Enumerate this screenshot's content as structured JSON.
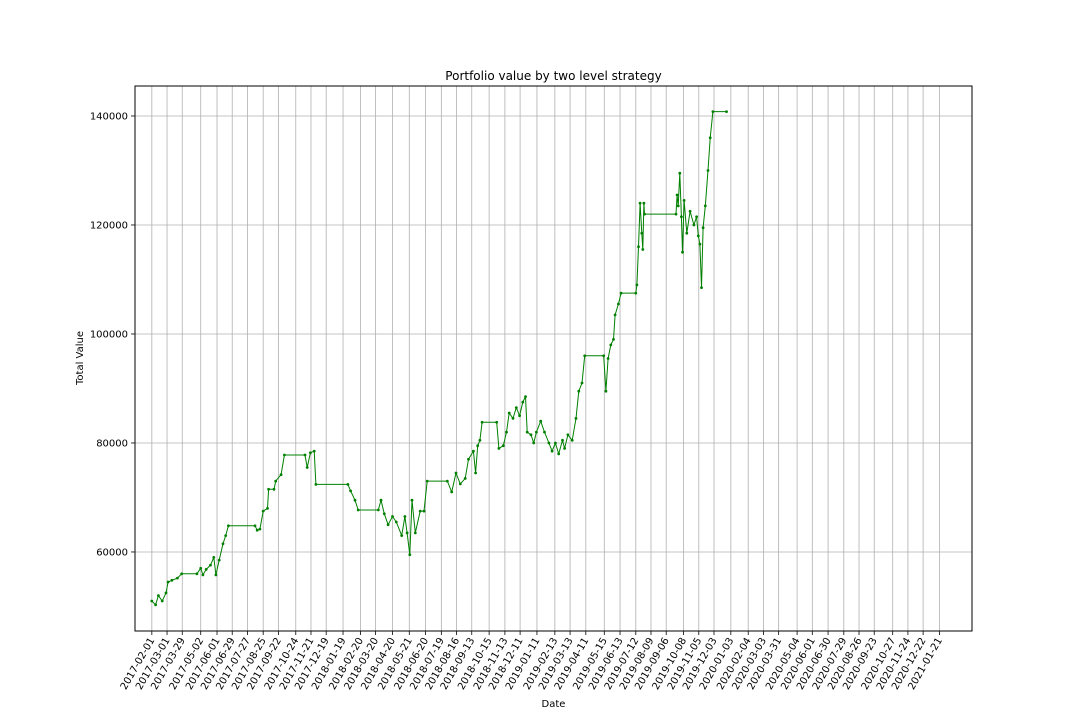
{
  "chart_data": {
    "type": "line",
    "title": "Portfolio value by two level strategy",
    "xlabel": "Date",
    "ylabel": "Total Value",
    "grid": true,
    "legend": "none",
    "xlim": [
      "2017-01-01",
      "2021-03-22"
    ],
    "ylim": [
      45500,
      145500
    ],
    "y_ticks": [
      60000,
      80000,
      100000,
      120000,
      140000
    ],
    "x_ticks": [
      "2017-02-01",
      "2017-03-01",
      "2017-03-29",
      "2017-05-02",
      "2017-06-01",
      "2017-06-29",
      "2017-07-27",
      "2017-08-25",
      "2017-09-22",
      "2017-10-24",
      "2017-11-21",
      "2017-12-19",
      "2018-01-19",
      "2018-02-20",
      "2018-03-20",
      "2018-04-20",
      "2018-05-21",
      "2018-06-20",
      "2018-07-19",
      "2018-08-16",
      "2018-09-13",
      "2018-10-15",
      "2018-11-13",
      "2018-12-11",
      "2019-01-11",
      "2019-02-13",
      "2019-03-13",
      "2019-04-11",
      "2019-05-15",
      "2019-06-13",
      "2019-07-12",
      "2019-08-09",
      "2019-09-06",
      "2019-10-08",
      "2019-11-05",
      "2019-12-03",
      "2020-01-03",
      "2020-02-04",
      "2020-03-03",
      "2020-03-31",
      "2020-05-04",
      "2020-06-01",
      "2020-06-30",
      "2020-07-29",
      "2020-08-26",
      "2020-09-23",
      "2020-10-27",
      "2020-11-24",
      "2020-12-22",
      "2021-01-21"
    ],
    "series": [
      {
        "color": "#008000",
        "points": [
          [
            "2017-02-01",
            51000
          ],
          [
            "2017-02-08",
            50300
          ],
          [
            "2017-02-13",
            52000
          ],
          [
            "2017-02-20",
            51000
          ],
          [
            "2017-02-27",
            52500
          ],
          [
            "2017-03-03",
            54500
          ],
          [
            "2017-03-10",
            54800
          ],
          [
            "2017-03-20",
            55200
          ],
          [
            "2017-03-28",
            56000
          ],
          [
            "2017-04-25",
            56000
          ],
          [
            "2017-05-02",
            57000
          ],
          [
            "2017-05-06",
            55800
          ],
          [
            "2017-05-12",
            56800
          ],
          [
            "2017-05-20",
            57600
          ],
          [
            "2017-05-26",
            59000
          ],
          [
            "2017-05-30",
            55800
          ],
          [
            "2017-06-05",
            58500
          ],
          [
            "2017-06-12",
            61500
          ],
          [
            "2017-06-17",
            63000
          ],
          [
            "2017-06-22",
            64800
          ],
          [
            "2017-08-10",
            64800
          ],
          [
            "2017-08-14",
            64000
          ],
          [
            "2017-08-19",
            64200
          ],
          [
            "2017-08-25",
            67500
          ],
          [
            "2017-09-02",
            68000
          ],
          [
            "2017-09-04",
            71500
          ],
          [
            "2017-09-14",
            71500
          ],
          [
            "2017-09-17",
            73000
          ],
          [
            "2017-09-27",
            74200
          ],
          [
            "2017-10-03",
            77800
          ],
          [
            "2017-11-10",
            77800
          ],
          [
            "2017-11-14",
            75500
          ],
          [
            "2017-11-20",
            78200
          ],
          [
            "2017-11-27",
            78500
          ],
          [
            "2017-11-30",
            72400
          ],
          [
            "2018-01-28",
            72400
          ],
          [
            "2018-02-02",
            71200
          ],
          [
            "2018-02-10",
            69500
          ],
          [
            "2018-02-16",
            67700
          ],
          [
            "2018-03-25",
            67700
          ],
          [
            "2018-03-30",
            69500
          ],
          [
            "2018-04-05",
            67000
          ],
          [
            "2018-04-12",
            65000
          ],
          [
            "2018-04-20",
            66500
          ],
          [
            "2018-04-27",
            65500
          ],
          [
            "2018-05-07",
            63000
          ],
          [
            "2018-05-13",
            66500
          ],
          [
            "2018-05-17",
            63500
          ],
          [
            "2018-05-22",
            59500
          ],
          [
            "2018-05-26",
            69500
          ],
          [
            "2018-06-01",
            63500
          ],
          [
            "2018-06-10",
            67500
          ],
          [
            "2018-06-17",
            67500
          ],
          [
            "2018-06-23",
            73000
          ],
          [
            "2018-07-30",
            73000
          ],
          [
            "2018-08-07",
            71000
          ],
          [
            "2018-08-15",
            74500
          ],
          [
            "2018-08-23",
            72500
          ],
          [
            "2018-09-01",
            73500
          ],
          [
            "2018-09-07",
            77000
          ],
          [
            "2018-09-16",
            78500
          ],
          [
            "2018-09-20",
            74500
          ],
          [
            "2018-09-24",
            79500
          ],
          [
            "2018-09-28",
            80500
          ],
          [
            "2018-10-02",
            83800
          ],
          [
            "2018-10-29",
            83800
          ],
          [
            "2018-11-02",
            79000
          ],
          [
            "2018-11-10",
            79500
          ],
          [
            "2018-11-16",
            82000
          ],
          [
            "2018-11-21",
            85500
          ],
          [
            "2018-11-28",
            84500
          ],
          [
            "2018-12-04",
            86500
          ],
          [
            "2018-12-10",
            85000
          ],
          [
            "2018-12-16",
            87500
          ],
          [
            "2018-12-21",
            88500
          ],
          [
            "2018-12-24",
            82000
          ],
          [
            "2018-12-31",
            81500
          ],
          [
            "2019-01-05",
            80000
          ],
          [
            "2019-01-10",
            82000
          ],
          [
            "2019-01-18",
            84000
          ],
          [
            "2019-01-25",
            82000
          ],
          [
            "2019-02-02",
            80000
          ],
          [
            "2019-02-08",
            78500
          ],
          [
            "2019-02-14",
            80000
          ],
          [
            "2019-02-20",
            78000
          ],
          [
            "2019-02-27",
            80500
          ],
          [
            "2019-03-03",
            79000
          ],
          [
            "2019-03-09",
            81500
          ],
          [
            "2019-03-17",
            80500
          ],
          [
            "2019-03-24",
            84500
          ],
          [
            "2019-03-29",
            89500
          ],
          [
            "2019-04-04",
            91000
          ],
          [
            "2019-04-09",
            96000
          ],
          [
            "2019-05-14",
            96000
          ],
          [
            "2019-05-18",
            89500
          ],
          [
            "2019-05-22",
            95500
          ],
          [
            "2019-05-27",
            98000
          ],
          [
            "2019-06-01",
            99000
          ],
          [
            "2019-06-04",
            103500
          ],
          [
            "2019-06-10",
            105500
          ],
          [
            "2019-06-15",
            107500
          ],
          [
            "2019-07-12",
            107500
          ],
          [
            "2019-07-14",
            109000
          ],
          [
            "2019-07-17",
            116000
          ],
          [
            "2019-07-20",
            124000
          ],
          [
            "2019-07-23",
            118500
          ],
          [
            "2019-07-25",
            115500
          ],
          [
            "2019-07-27",
            124000
          ],
          [
            "2019-07-28",
            122000
          ],
          [
            "2019-09-24",
            122000
          ],
          [
            "2019-09-26",
            125500
          ],
          [
            "2019-09-28",
            123500
          ],
          [
            "2019-10-01",
            129500
          ],
          [
            "2019-10-04",
            121500
          ],
          [
            "2019-10-06",
            115000
          ],
          [
            "2019-10-09",
            124500
          ],
          [
            "2019-10-14",
            118500
          ],
          [
            "2019-10-20",
            122500
          ],
          [
            "2019-10-27",
            120000
          ],
          [
            "2019-11-01",
            121500
          ],
          [
            "2019-11-04",
            118000
          ],
          [
            "2019-11-07",
            116500
          ],
          [
            "2019-11-10",
            108500
          ],
          [
            "2019-11-13",
            119500
          ],
          [
            "2019-11-17",
            123500
          ],
          [
            "2019-11-22",
            130000
          ],
          [
            "2019-11-26",
            136000
          ],
          [
            "2019-12-01",
            140800
          ],
          [
            "2019-12-26",
            140800
          ]
        ]
      }
    ]
  }
}
